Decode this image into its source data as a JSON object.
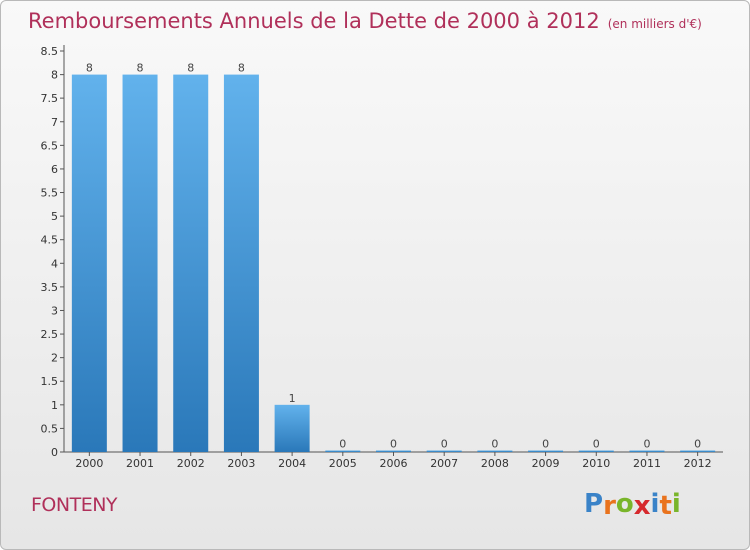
{
  "title": "Remboursements Annuels de la Dette de 2000 à 2012",
  "unit_label": "(en milliers d'€)",
  "city": "FONTENY",
  "logo": {
    "text": "Proxiti",
    "letters": [
      "P",
      "r",
      "o",
      "x",
      "i",
      "t",
      "i"
    ],
    "colors": [
      "#3a83c8",
      "#e9731d",
      "#79b52a",
      "#d6292d",
      "#3a83c8",
      "#e9731d",
      "#79b52a"
    ]
  },
  "colors": {
    "title": "#b0305a",
    "bar_top": "#62b2ec",
    "bar_bottom": "#2a78b9"
  },
  "chart_data": {
    "type": "bar",
    "categories": [
      "2000",
      "2001",
      "2002",
      "2003",
      "2004",
      "2005",
      "2006",
      "2007",
      "2008",
      "2009",
      "2010",
      "2011",
      "2012"
    ],
    "values": [
      8,
      8,
      8,
      8,
      1,
      0,
      0,
      0,
      0,
      0,
      0,
      0,
      0
    ],
    "data_labels": [
      "8",
      "8",
      "8",
      "8",
      "1",
      "0",
      "0",
      "0",
      "0",
      "0",
      "0",
      "0",
      "0"
    ],
    "ylim": [
      0,
      8.5
    ],
    "yticks": [
      0,
      0.5,
      1,
      1.5,
      2,
      2.5,
      3,
      3.5,
      4,
      4.5,
      5,
      5.5,
      6,
      6.5,
      7,
      7.5,
      8,
      8.5
    ],
    "ytick_labels": [
      "0",
      "0.5",
      "1",
      "1.5",
      "2",
      "2.5",
      "3",
      "3.5",
      "4",
      "4.5",
      "5",
      "5.5",
      "6",
      "6.5",
      "7",
      "7.5",
      "8",
      "8.5"
    ],
    "grid": false,
    "legend": "none"
  }
}
